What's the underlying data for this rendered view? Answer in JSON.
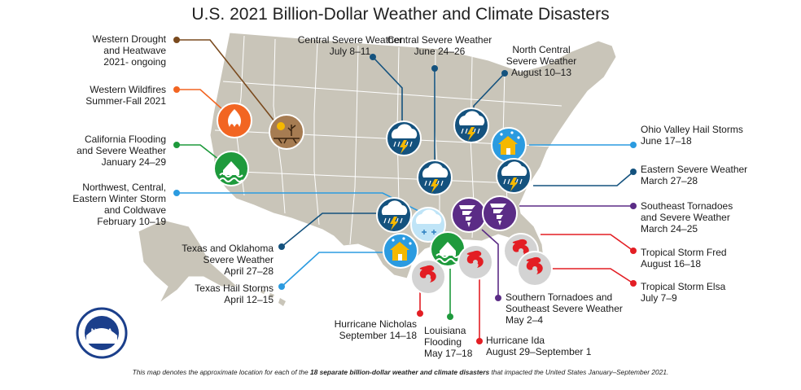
{
  "title": "U.S. 2021 Billion-Dollar Weather and Climate Disasters",
  "footnote": {
    "pre": "This map denotes the approximate location for each of the ",
    "bold": "18 separate billion-dollar weather and climate disasters",
    "post": " that impacted the United States January–September 2021."
  },
  "colors": {
    "land": "#c9c5b9",
    "border": "#ffffff",
    "drought": "#7a4a1e",
    "wildfire": "#f26522",
    "flooding": "#1e9a3c",
    "severe_weather": "#14527e",
    "hail_winter": "#2b9be0",
    "tornado": "#5b2c86",
    "tropical": "#e31e24"
  },
  "events": [
    {
      "key": "drought",
      "label": "Western Drought\nand Heatwave\n2021- ongoing",
      "icon": "drought-icon"
    },
    {
      "key": "wildfire",
      "label": "Western Wildfires\nSummer-Fall 2021",
      "icon": "fire-icon"
    },
    {
      "key": "ca_flood",
      "label": "California Flooding\nand Severe Weather\nJanuary 24–29",
      "icon": "flood-icon"
    },
    {
      "key": "winter",
      "label": "Northwest, Central,\nEastern Winter Storm\nand Coldwave\nFebruary 10–19",
      "icon": "snowflake-icon"
    },
    {
      "key": "tx_ok",
      "label": "Texas and Oklahoma\nSevere Weather\nApril 27–28",
      "icon": "storm-cloud-icon"
    },
    {
      "key": "tx_hail",
      "label": "Texas Hail Storms\nApril 12–15",
      "icon": "hail-house-icon"
    },
    {
      "key": "central_jul",
      "label": "Central Severe Weather\nJuly 8–11",
      "icon": "storm-cloud-icon"
    },
    {
      "key": "central_jun",
      "label": "Central Severe Weather\nJune 24–26",
      "icon": "storm-cloud-icon"
    },
    {
      "key": "north_central",
      "label": "North Central\nSevere Weather\nAugust 10–13",
      "icon": "storm-cloud-icon"
    },
    {
      "key": "ohio",
      "label": "Ohio Valley Hail Storms\nJune 17–18",
      "icon": "hail-house-icon"
    },
    {
      "key": "eastern",
      "label": "Eastern Severe Weather\nMarch 27–28",
      "icon": "storm-cloud-icon"
    },
    {
      "key": "se_tornado",
      "label": "Southeast Tornadoes\nand Severe Weather\nMarch 24–25",
      "icon": "tornado-icon"
    },
    {
      "key": "fred",
      "label": "Tropical Storm Fred\nAugust 16–18",
      "icon": "hurricane-icon"
    },
    {
      "key": "elsa",
      "label": "Tropical Storm Elsa\nJuly 7–9",
      "icon": "hurricane-icon"
    },
    {
      "key": "south_tornado",
      "label": "Southern Tornadoes and\nSoutheast Severe Weather\nMay 2–4",
      "icon": "tornado-icon"
    },
    {
      "key": "ida",
      "label": "Hurricane Ida\nAugust 29–September 1",
      "icon": "hurricane-icon"
    },
    {
      "key": "la_flood",
      "label": "Louisiana\nFlooding\nMay 17–18",
      "icon": "flood-icon"
    },
    {
      "key": "nicholas",
      "label": "Hurricane Nicholas\nSeptember 14–18",
      "icon": "hurricane-icon"
    }
  ],
  "logo": {
    "text": "NOAA"
  }
}
